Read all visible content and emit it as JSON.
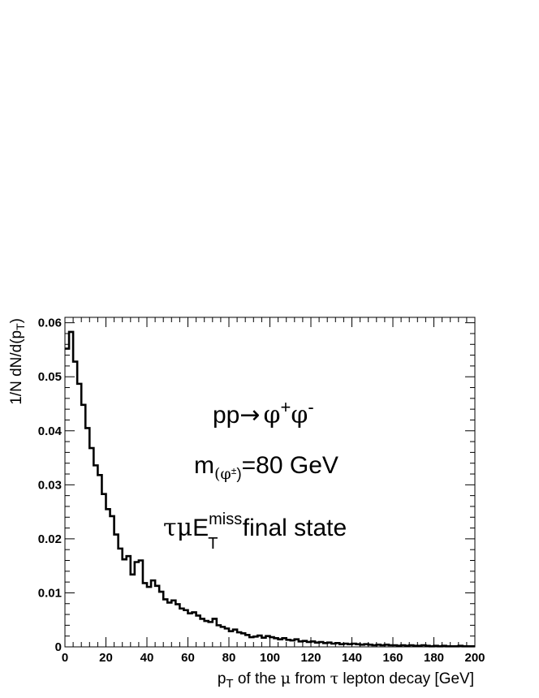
{
  "chart_data": {
    "type": "histogram",
    "x_axis_label": "p_T of the μ from τ lepton decay [GeV]",
    "x_axis_label_parts": {
      "p": "p",
      "sub_T": "T",
      "rest": " of the ",
      "mu": "μ",
      "from": " from ",
      "tau": "τ",
      "tail": " lepton decay [GeV]"
    },
    "y_axis_label": "1/N dN/d(p_T)",
    "y_axis_label_parts": {
      "main": "1/N dN/d(p",
      "sub_T": "T",
      "close": ")"
    },
    "xlim": [
      0,
      200
    ],
    "ylim": [
      0,
      0.061
    ],
    "x_ticks": [
      "0",
      "20",
      "40",
      "60",
      "80",
      "100",
      "120",
      "140",
      "160",
      "180",
      "200"
    ],
    "y_ticks": [
      "0",
      "0.01",
      "0.02",
      "0.03",
      "0.04",
      "0.05",
      "0.06"
    ],
    "annotations": {
      "process": {
        "pp": "pp",
        "arrow": "→",
        "phi_plus": "φ",
        "sup_plus": "+",
        "phi_minus": "φ",
        "sup_minus": "-"
      },
      "mass": {
        "m": "m",
        "sub": "(φ",
        "sub_sup": "±",
        "sub_close": ")",
        "value": "=80 GeV"
      },
      "state": {
        "tau_mu": "τμ",
        "E": "E",
        "sup": "miss",
        "sub": "T",
        "rest": " final state"
      }
    },
    "series": [
      {
        "bin_width": 2,
        "bins_start": 0,
        "values": [
          0.0552,
          0.0583,
          0.0528,
          0.0487,
          0.0448,
          0.0405,
          0.0368,
          0.0336,
          0.0318,
          0.0283,
          0.0255,
          0.0242,
          0.0208,
          0.0182,
          0.0162,
          0.0168,
          0.0134,
          0.0157,
          0.016,
          0.0118,
          0.0111,
          0.0123,
          0.0113,
          0.0102,
          0.0088,
          0.0082,
          0.0086,
          0.0079,
          0.0071,
          0.0068,
          0.0062,
          0.0064,
          0.0058,
          0.0052,
          0.0048,
          0.0046,
          0.0052,
          0.004,
          0.0037,
          0.0034,
          0.0029,
          0.0032,
          0.0027,
          0.0025,
          0.0022,
          0.0018,
          0.0019,
          0.0021,
          0.0017,
          0.002,
          0.0018,
          0.0016,
          0.0014,
          0.0016,
          0.0013,
          0.0012,
          0.0014,
          0.001,
          0.0011,
          0.0009,
          0.001,
          0.0008,
          0.0009,
          0.0007,
          0.0008,
          0.0006,
          0.0007,
          0.0005,
          0.0006,
          0.0005,
          0.0006,
          0.0005,
          0.0004,
          0.0005,
          0.0004,
          0.0003,
          0.0004,
          0.0003,
          0.0004,
          0.0003,
          0.0003,
          0.0002,
          0.0003,
          0.0002,
          0.0003,
          0.0002,
          0.0002,
          0.0003,
          0.0002,
          0.0001,
          0.0002,
          0.0001,
          0.0002,
          0.0001,
          0.0001,
          0.0001,
          0.0002,
          0.0001,
          0.0001,
          0.0001
        ]
      }
    ],
    "grid": false,
    "legend": "none",
    "line_color": "#000000"
  }
}
